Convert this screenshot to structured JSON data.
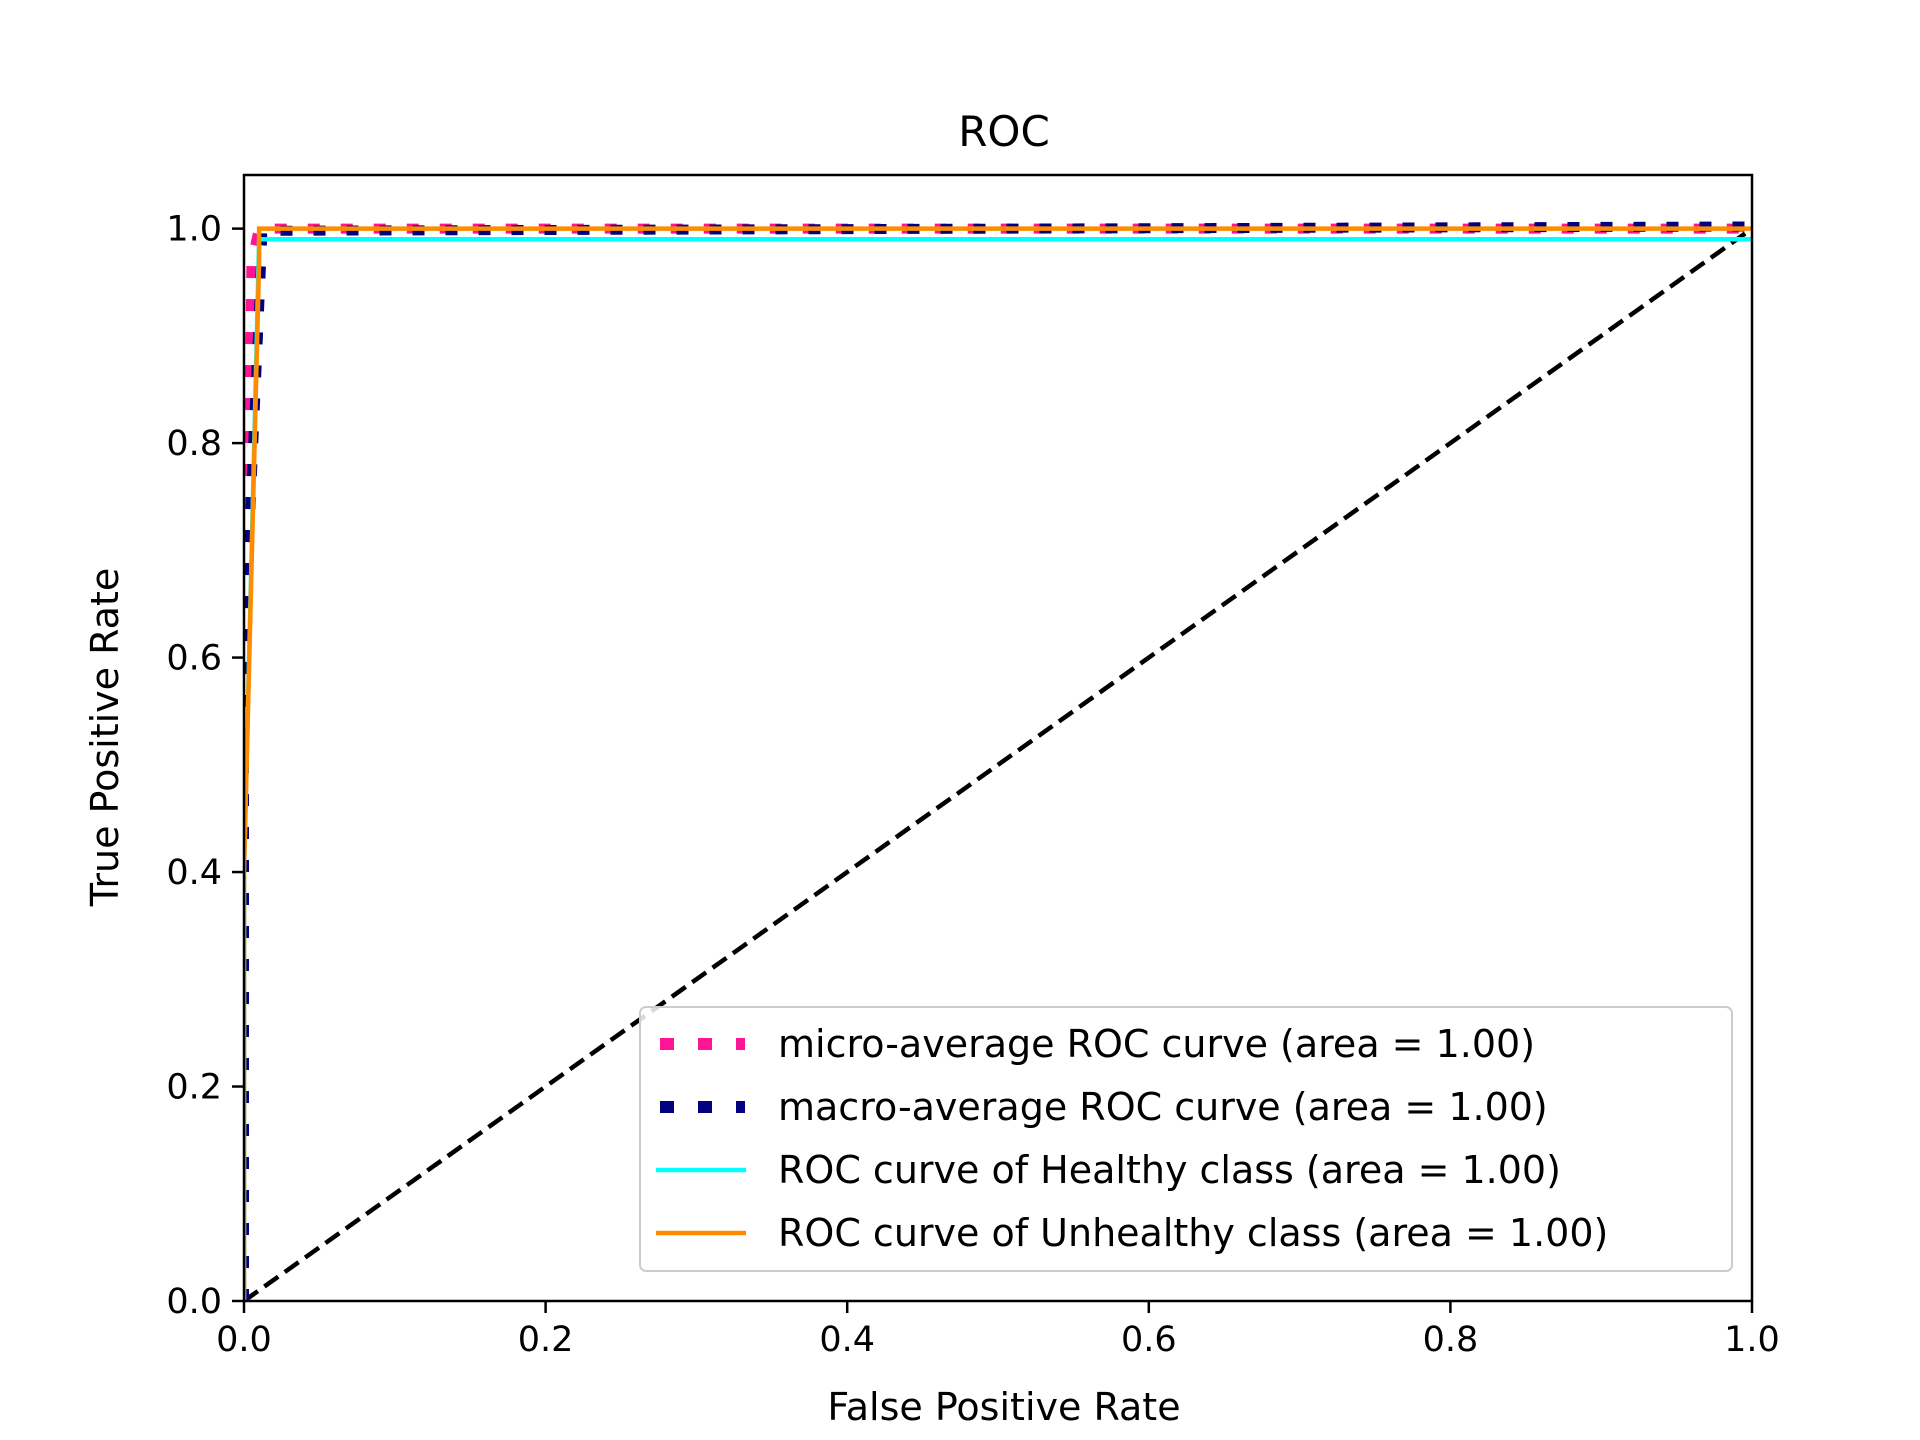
{
  "chart_data": {
    "type": "line",
    "title": "ROC",
    "xlabel": "False Positive Rate",
    "ylabel": "True Positive Rate",
    "xlim": [
      0.0,
      1.0
    ],
    "ylim": [
      0.0,
      1.05
    ],
    "xticks": [
      0.0,
      0.2,
      0.4,
      0.6,
      0.8,
      1.0
    ],
    "yticks": [
      0.0,
      0.2,
      0.4,
      0.6,
      0.8,
      1.0
    ],
    "xtick_labels": [
      "0.0",
      "0.2",
      "0.4",
      "0.6",
      "0.8",
      "1.0"
    ],
    "ytick_labels": [
      "0.0",
      "0.2",
      "0.4",
      "0.6",
      "0.8",
      "1.0"
    ],
    "grid": false,
    "legend_position": "lower-right",
    "series": [
      {
        "name": "micro-average ROC curve (area = 1.00)",
        "color": "#ff1493",
        "style": "dotted",
        "x": [
          0.0,
          0.0,
          0.005,
          0.01,
          1.0
        ],
        "y": [
          0.0,
          0.5,
          0.97,
          1.0,
          1.0
        ]
      },
      {
        "name": "macro-average ROC curve (area = 1.00)",
        "color": "#000080",
        "style": "dotted",
        "x": [
          0.0,
          0.0,
          0.012,
          0.012,
          1.0
        ],
        "y": [
          0.0,
          0.6,
          0.99,
          0.998,
          1.002
        ]
      },
      {
        "name": "ROC curve of Healthy class  (area = 1.00)",
        "color": "#00ffff",
        "style": "solid",
        "x": [
          0.0,
          0.0,
          0.01,
          1.0
        ],
        "y": [
          0.0,
          0.4,
          0.99,
          0.99
        ]
      },
      {
        "name": "ROC curve of Unhealthy class  (area = 1.00)",
        "color": "#ff8c00",
        "style": "solid",
        "x": [
          0.0,
          0.0,
          0.01,
          0.01,
          1.0
        ],
        "y": [
          0.0,
          0.4,
          0.97,
          1.0,
          1.0
        ]
      }
    ],
    "reference_line": {
      "color": "#000000",
      "style": "dashed",
      "x": [
        0.0,
        1.0
      ],
      "y": [
        0.0,
        1.0
      ]
    }
  }
}
